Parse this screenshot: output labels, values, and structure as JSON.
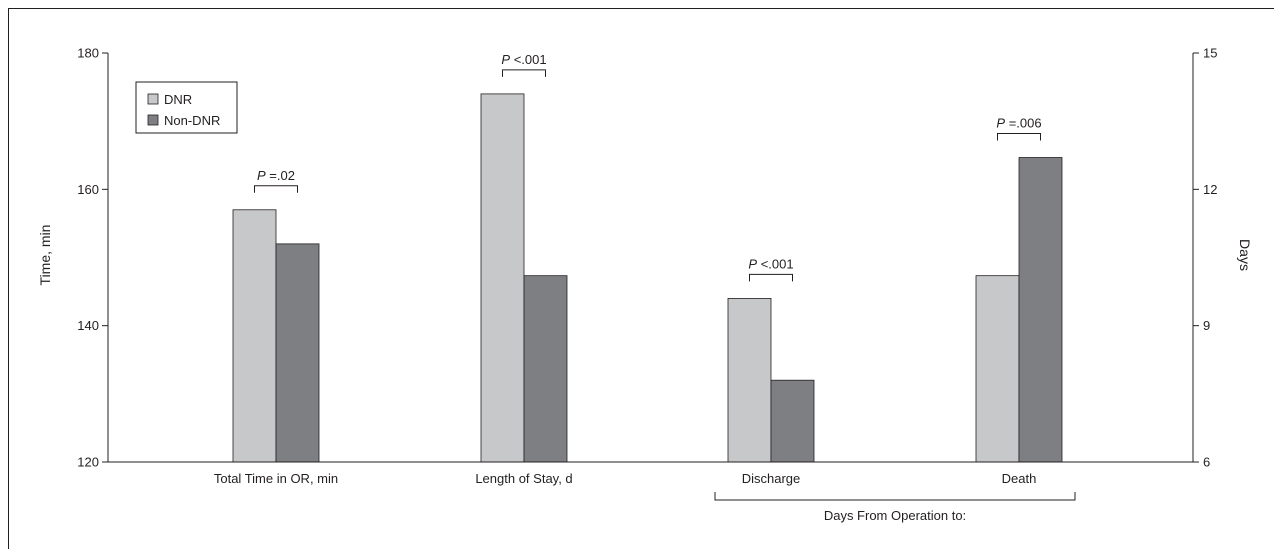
{
  "chart_data": {
    "type": "bar",
    "categories": [
      "Total Time in OR, min",
      "Length of Stay, d",
      "Discharge",
      "Death"
    ],
    "group_label": "Days From Operation to:",
    "grouped_categories": [
      "Discharge",
      "Death"
    ],
    "series": [
      {
        "name": "DNR",
        "color": "#c6c8ca",
        "values": [
          157,
          14.1,
          9.6,
          10.1
        ]
      },
      {
        "name": "Non-DNR",
        "color": "#7d7f82",
        "values": [
          152,
          10.1,
          7.8,
          12.7
        ]
      }
    ],
    "axis_for_category": [
      "left",
      "right",
      "right",
      "right"
    ],
    "y_left": {
      "label": "Time, min",
      "ylim": [
        120,
        180
      ],
      "ticks": [
        120,
        140,
        160,
        180
      ]
    },
    "y_right": {
      "label": "Days",
      "ylim": [
        6,
        15
      ],
      "ticks": [
        6,
        9,
        12,
        15
      ]
    },
    "p_values": [
      {
        "category": "Total Time in OR, min",
        "prefix": "P",
        "text": "=.02"
      },
      {
        "category": "Length of Stay, d",
        "prefix": "P",
        "text": "<.001"
      },
      {
        "category": "Discharge",
        "prefix": "P",
        "text": "<.001"
      },
      {
        "category": "Death",
        "prefix": "P",
        "text": "=.006"
      }
    ],
    "legend": {
      "placement": "top-left",
      "entries": [
        "DNR",
        "Non-DNR"
      ]
    },
    "grid": false
  }
}
